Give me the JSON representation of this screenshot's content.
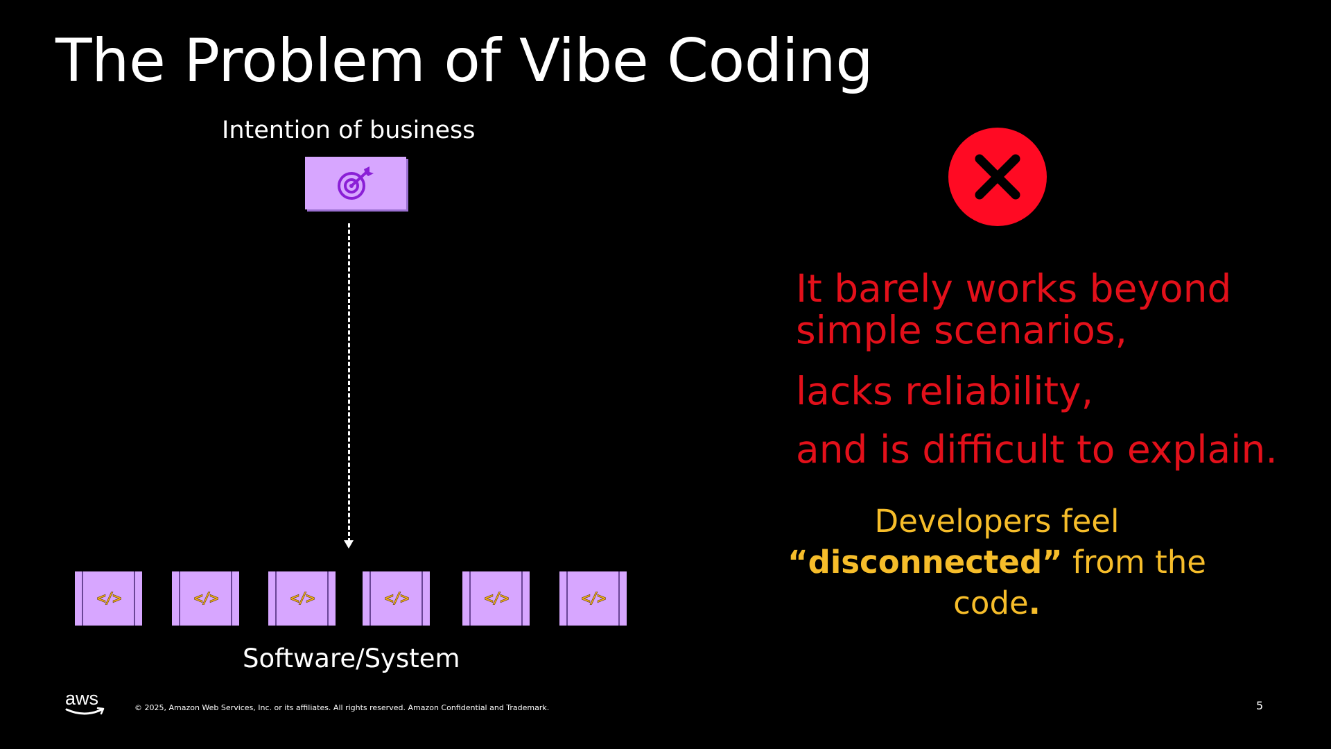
{
  "slide": {
    "title": "The Problem of Vibe Coding",
    "page_number": "5"
  },
  "diagram": {
    "top_label": "Intention of business",
    "top_icon": "target-icon",
    "bottom_label": "Software/System",
    "module_icon": "code-icon",
    "module_glyph": "</>",
    "module_count": 6
  },
  "problems": {
    "line1": "It barely works beyond simple scenarios,",
    "line2": "lacks reliability,",
    "line3": "and is difficult to explain."
  },
  "developer_note": {
    "text_before": "Developers feel",
    "emphasis": "“disconnected”",
    "text_after": " from the code",
    "end_mark": "."
  },
  "footer": {
    "logo_text": "aws",
    "copyright": "© 2025, Amazon Web Services, Inc. or its affiliates. All rights reserved. Amazon Confidential and Trademark."
  },
  "colors": {
    "background": "#000000",
    "problem_text": "#e3101a",
    "note_text": "#f6bd2a",
    "box_fill": "#d7a6ff",
    "x_circle": "#ff0a23"
  }
}
